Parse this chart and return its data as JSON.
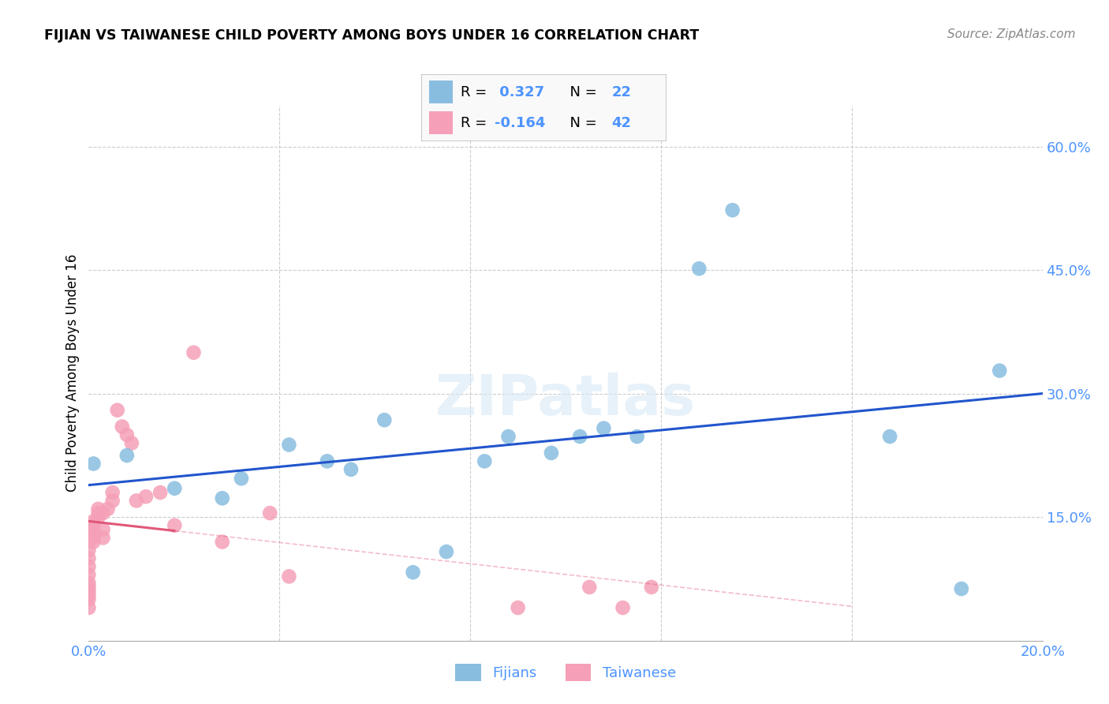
{
  "title": "FIJIAN VS TAIWANESE CHILD POVERTY AMONG BOYS UNDER 16 CORRELATION CHART",
  "source": "Source: ZipAtlas.com",
  "tick_color": "#4d94ff",
  "ylabel": "Child Poverty Among Boys Under 16",
  "xlim": [
    0.0,
    0.2
  ],
  "ylim": [
    0.0,
    0.65
  ],
  "x_ticks": [
    0.0,
    0.04,
    0.08,
    0.12,
    0.16,
    0.2
  ],
  "y_ticks_right": [
    0.15,
    0.3,
    0.45,
    0.6
  ],
  "y_tick_labels_right": [
    "15.0%",
    "30.0%",
    "45.0%",
    "60.0%"
  ],
  "fijian_color": "#89bde0",
  "taiwanese_color": "#f5a0b8",
  "fijian_line_color": "#2255cc",
  "taiwanese_line_color": "#e05878",
  "fijians_label": "Fijians",
  "taiwanese_label": "Taiwanese",
  "background_color": "#ffffff",
  "grid_color": "#cccccc",
  "fijian_x": [
    0.001,
    0.008,
    0.018,
    0.028,
    0.032,
    0.042,
    0.05,
    0.055,
    0.062,
    0.068,
    0.075,
    0.083,
    0.088,
    0.097,
    0.103,
    0.108,
    0.115,
    0.128,
    0.135,
    0.168,
    0.183,
    0.191
  ],
  "fijian_y": [
    0.215,
    0.225,
    0.185,
    0.173,
    0.197,
    0.238,
    0.218,
    0.208,
    0.268,
    0.083,
    0.108,
    0.218,
    0.248,
    0.228,
    0.248,
    0.258,
    0.248,
    0.452,
    0.523,
    0.248,
    0.063,
    0.328
  ],
  "taiwanese_x": [
    0.0,
    0.0,
    0.0,
    0.0,
    0.0,
    0.0,
    0.0,
    0.0,
    0.0,
    0.0,
    0.001,
    0.001,
    0.001,
    0.001,
    0.001,
    0.001,
    0.002,
    0.002,
    0.002,
    0.003,
    0.003,
    0.003,
    0.004,
    0.005,
    0.005,
    0.006,
    0.007,
    0.008,
    0.009,
    0.01,
    0.012,
    0.015,
    0.018,
    0.022,
    0.028,
    0.038,
    0.042,
    0.09,
    0.105,
    0.112,
    0.118
  ],
  "taiwanese_y": [
    0.04,
    0.05,
    0.055,
    0.06,
    0.065,
    0.07,
    0.08,
    0.09,
    0.1,
    0.11,
    0.12,
    0.125,
    0.13,
    0.135,
    0.14,
    0.145,
    0.15,
    0.155,
    0.16,
    0.125,
    0.135,
    0.155,
    0.16,
    0.17,
    0.18,
    0.28,
    0.26,
    0.25,
    0.24,
    0.17,
    0.175,
    0.18,
    0.14,
    0.35,
    0.12,
    0.155,
    0.078,
    0.04,
    0.065,
    0.04,
    0.065
  ]
}
